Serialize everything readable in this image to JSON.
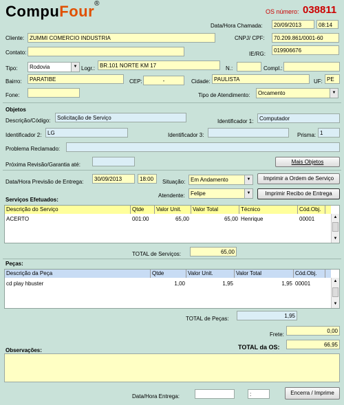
{
  "brand": {
    "name_a": "Compu",
    "name_b": "Four",
    "reg": "®"
  },
  "os": {
    "label": "OS número:",
    "number": "038811"
  },
  "chamada": {
    "label": "Data/Hora Chamada:",
    "date": "20/09/2013",
    "time": "08:14"
  },
  "cliente": {
    "label": "Cliente:",
    "value": "ZUMMI COMERCIO INDUSTRIA"
  },
  "cnpj": {
    "label": "CNPJ/ CPF:",
    "value": "70.209.861/0001-60"
  },
  "contato": {
    "label": "Contato:",
    "value": ""
  },
  "ierg": {
    "label": "IE/RG:",
    "value": "019906676"
  },
  "tipo": {
    "label": "Tipo:",
    "value": "Rodovia"
  },
  "logr": {
    "label": "Logr.:",
    "value": "BR.101 NORTE KM 17"
  },
  "numero": {
    "label": "N.:",
    "value": ""
  },
  "compl": {
    "label": "Compl.:",
    "value": ""
  },
  "bairro": {
    "label": "Bairro:",
    "value": "PARATIBE"
  },
  "cep": {
    "label": "CEP:",
    "value": "-"
  },
  "cidade": {
    "label": "Cidade:",
    "value": "PAULISTA"
  },
  "uf": {
    "label": "UF:",
    "value": "PE"
  },
  "fone": {
    "label": "Fone:",
    "value": ""
  },
  "tipo_atendimento": {
    "label": "Tipo de Atendimento:",
    "value": "Orcamento"
  },
  "objetos": {
    "section": "Objetos",
    "descricao_label": "Descrição/Código:",
    "descricao": "Solicitação de Serviço",
    "ident1_label": "Identificador 1:",
    "ident1": "Computador",
    "ident2_label": "Identificador 2:",
    "ident2": "LG",
    "ident3_label": "Identificador 3:",
    "ident3": "",
    "prisma_label": "Prisma:",
    "prisma": "1",
    "problema_label": "Problema Reclamado:",
    "problema": "",
    "revisao_label": "Próxima Revisão/Garantia até:",
    "revisao": "",
    "mais_objetos": "Mais Objetos"
  },
  "previsao": {
    "label": "Data/Hora Previsão de Entrega:",
    "date": "30/09/2013",
    "time": "18:00"
  },
  "situacao": {
    "label": "Situação:",
    "value": "Em Andamento"
  },
  "atendente": {
    "label": "Atendente:",
    "value": "Felipe"
  },
  "buttons": {
    "imprimir_os": "Imprimir a Ordem de Serviço",
    "imprimir_recibo": "Imprimir Recibo de Entrega",
    "encerra": "Encerra / Imprime"
  },
  "servicos": {
    "section": "Serviços Efetuados:",
    "headers": [
      "Descrição do Serviço",
      "Qtde",
      "Valor Unit.",
      "Valor Total",
      "Técnico",
      "Cód.Obj."
    ],
    "rows": [
      [
        "ACERTO",
        "001:00",
        "65,00",
        "65,00",
        "Henrique",
        "00001"
      ]
    ],
    "total_label": "TOTAL de Serviços:",
    "total": "65,00"
  },
  "pecas": {
    "section": "Peças:",
    "headers": [
      "Descrição da Peça",
      "Qtde",
      "Valor Unit.",
      "Valor Total",
      "Cód.Obj."
    ],
    "rows": [
      [
        "cd play hbuster",
        "1,00",
        "1,95",
        "1,95",
        "00001"
      ]
    ],
    "total_label": "TOTAL de Peças:",
    "total": "1,95"
  },
  "frete": {
    "label": "Frete:",
    "value": "0,00"
  },
  "total_os": {
    "label": "TOTAL da OS:",
    "value": "66,95"
  },
  "observacoes": {
    "label": "Observações:",
    "value": ""
  },
  "entrega": {
    "label": "Data/Hora Entrega:",
    "date": "",
    "time": ":"
  },
  "colors": {
    "background": "#c9e2d9",
    "os_number": "#cc0000",
    "brand_four": "#e05000",
    "grid_header_yellow": "#ffff9c",
    "grid_header_blue": "#c8dcf4"
  }
}
